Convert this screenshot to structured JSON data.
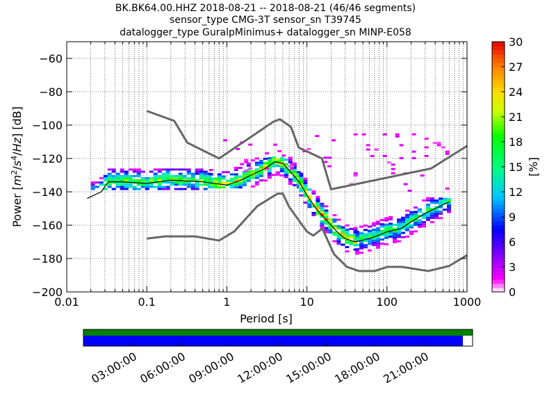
{
  "title": {
    "line1": "BK.BK64.00.HHZ   2018-08-21 -- 2018-08-21  (46/46 segments)",
    "line2": "sensor_type CMG-3T sensor_sn T39745",
    "line3": "datalogger_type GuralpMinimus+ datalogger_sn MINP-E058"
  },
  "colors": {
    "grid": "#000000",
    "noise_model": "#666666",
    "mode_line": "#000000",
    "coverage_data": "#008000",
    "coverage_gaps": "#0000ff"
  },
  "chart_data": [
    {
      "type": "heatmap",
      "xlabel": "Period [s]",
      "ylabel": "Power [m²/s⁴/Hz] [dB]",
      "x_scale": "log",
      "xlim": [
        0.01,
        1000
      ],
      "ylim": [
        -200,
        -50
      ],
      "x_ticks": [
        0.01,
        0.1,
        1,
        10,
        100,
        1000
      ],
      "x_tick_labels": [
        "0.01",
        "0.1",
        "1",
        "10",
        "100",
        "1000"
      ],
      "y_ticks": [
        -200,
        -180,
        -160,
        -140,
        -120,
        -100,
        -80,
        -60
      ],
      "y_tick_labels": [
        "−200",
        "−180",
        "−160",
        "−140",
        "−120",
        "−100",
        "−80",
        "−60"
      ],
      "grid": true,
      "colorbar": {
        "label": "[%]",
        "range": [
          0,
          30
        ],
        "ticks": [
          0,
          3,
          6,
          9,
          12,
          15,
          18,
          21,
          24,
          27,
          30
        ],
        "tick_labels": [
          "0",
          "3",
          "6",
          "9",
          "12",
          "15",
          "18",
          "21",
          "24",
          "27",
          "30"
        ],
        "colormap": "pqlx"
      },
      "mode": {
        "period": [
          0.018,
          0.022,
          0.027,
          0.033,
          0.05,
          0.1,
          0.2,
          0.5,
          1,
          1.5,
          2,
          3,
          4,
          5,
          6,
          8,
          10,
          13,
          16,
          20,
          25,
          30,
          40,
          50,
          70,
          100,
          150,
          200,
          300,
          400,
          600
        ],
        "power": [
          -144,
          -142,
          -140,
          -134,
          -134,
          -135,
          -133,
          -134,
          -136,
          -133,
          -130,
          -126,
          -122,
          -123,
          -127,
          -134,
          -142,
          -150,
          -155,
          -160,
          -165,
          -168,
          -170,
          -169,
          -167,
          -164,
          -162,
          -158,
          -153,
          -150,
          -146
        ]
      },
      "new_high_noise_model": {
        "period": [
          0.1,
          0.22,
          0.32,
          0.8,
          3.8,
          4.6,
          6.3,
          7.9,
          15.4,
          20,
          354.8,
          1000
        ],
        "power": [
          -91.5,
          -97.4,
          -110.5,
          -120,
          -98,
          -96.5,
          -101,
          -113.5,
          -120,
          -138.5,
          -126,
          -112.5
        ]
      },
      "new_low_noise_model": {
        "period": [
          0.1,
          0.17,
          0.4,
          0.8,
          1.24,
          2.4,
          4.3,
          5,
          6,
          10,
          12,
          15.6,
          21.9,
          31.6,
          45,
          70,
          101,
          154,
          328,
          600,
          1000
        ],
        "power": [
          -168,
          -166.7,
          -166.7,
          -169.2,
          -163.7,
          -148.6,
          -141.1,
          -141.1,
          -149,
          -163.8,
          -166.2,
          -162.1,
          -177.5,
          -185,
          -187.5,
          -187.5,
          -185,
          -185,
          -187.5,
          -184.4,
          -178
        ]
      },
      "density_bands": [
        {
          "period": [
            0.02,
            0.6
          ],
          "low": -139,
          "high": -127,
          "peak": 24
        },
        {
          "period": [
            0.6,
            8
          ],
          "low": -138,
          "high": -120,
          "peak": 27
        },
        {
          "period": [
            8,
            40
          ],
          "low": -180,
          "high": -128,
          "peak": 30
        },
        {
          "period": [
            40,
            600
          ],
          "low": -178,
          "high": -144,
          "peak": 21
        },
        {
          "period": [
            0.8,
            30
          ],
          "low": -128,
          "high": -106,
          "peak": 2
        },
        {
          "period": [
            30,
            600
          ],
          "low": -140,
          "high": -106,
          "peak": 2
        }
      ]
    },
    {
      "type": "table",
      "xlim_hours": [
        0,
        24
      ],
      "time_tick_labels": [
        "03:00:00",
        "06:00:00",
        "09:00:00",
        "12:00:00",
        "15:00:00",
        "18:00:00",
        "21:00:00"
      ],
      "time_ticks_hours": [
        3,
        6,
        9,
        12,
        15,
        18,
        21
      ],
      "data_coverage_hours": [
        0,
        24
      ],
      "gap_coverage_hours": [
        0,
        23.4
      ]
    }
  ]
}
